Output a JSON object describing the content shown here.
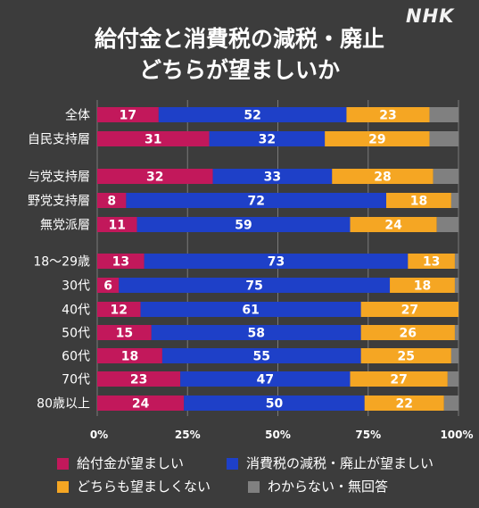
{
  "logo_text": "NHK",
  "title_lines": [
    "給付金と消費税の減税・廃止",
    "どちらが望ましいか"
  ],
  "chart_data": {
    "type": "bar",
    "orientation": "horizontal",
    "stacked": true,
    "title": "給付金と消費税の減税・廃止 どちらが望ましいか",
    "categories": [
      "全体",
      "自民支持層",
      "与党支持層",
      "野党支持層",
      "無党派層",
      "18～29歳",
      "30代",
      "40代",
      "50代",
      "60代",
      "70代",
      "80歳以上"
    ],
    "series": [
      {
        "name": "給付金が望ましい",
        "color": "#c2185b",
        "values": [
          17,
          31,
          32,
          8,
          11,
          13,
          6,
          12,
          15,
          18,
          23,
          24
        ]
      },
      {
        "name": "消費税の減税・廃止が望ましい",
        "color": "#1e40c8",
        "values": [
          52,
          32,
          33,
          72,
          59,
          73,
          75,
          61,
          58,
          55,
          47,
          50
        ]
      },
      {
        "name": "どちらも望ましくない",
        "color": "#f5a623",
        "values": [
          23,
          29,
          28,
          18,
          24,
          13,
          18,
          27,
          26,
          25,
          27,
          22
        ]
      },
      {
        "name": "わからない・無回答",
        "color": "#808080",
        "values": [
          8,
          8,
          7,
          2,
          6,
          1,
          1,
          0,
          1,
          2,
          3,
          4
        ]
      }
    ],
    "xlim": [
      0,
      100
    ],
    "xticks": [
      "0%",
      "25%",
      "50%",
      "75%",
      "100%"
    ],
    "grid": true,
    "legend_position": "bottom"
  }
}
